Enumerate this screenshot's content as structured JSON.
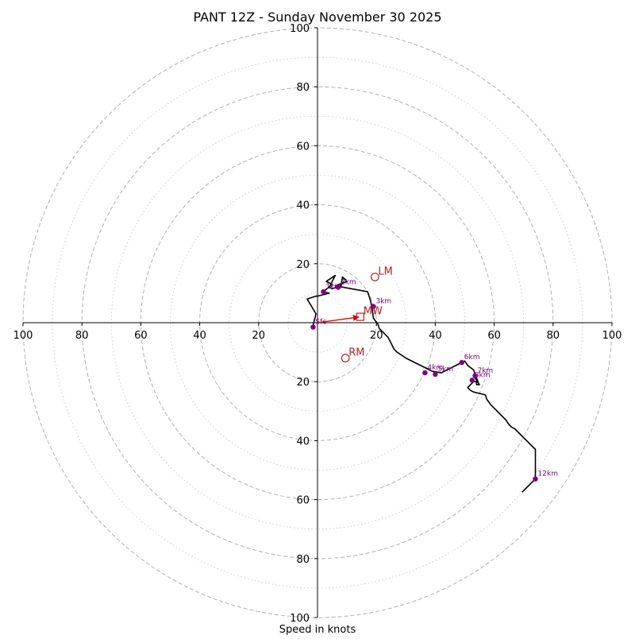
{
  "chart_data": {
    "type": "scatter",
    "subtype": "hodograph",
    "title": "PANT 12Z - Sunday November 30 2025",
    "xlabel": "Speed in knots",
    "ylabel": "",
    "xlim": [
      -100,
      100
    ],
    "ylim": [
      -100,
      100
    ],
    "ring_major": [
      20,
      40,
      60,
      80,
      100
    ],
    "ring_minor": [
      10,
      30,
      50,
      70,
      90
    ],
    "x_tick_labels": [
      "100",
      "80",
      "60",
      "40",
      "20",
      "",
      "20",
      "40",
      "60",
      "80",
      "100"
    ],
    "x_tick_values": [
      -100,
      -80,
      -60,
      -40,
      -20,
      0,
      20,
      40,
      60,
      80,
      100
    ],
    "y_tick_labels_top": [
      "20",
      "40",
      "60",
      "80",
      "100"
    ],
    "y_tick_labels_bottom": [
      "20",
      "40",
      "60",
      "80",
      "100"
    ],
    "y_tick_values": [
      20,
      40,
      60,
      80,
      100
    ],
    "trace": {
      "name": "hodograph",
      "color": "#000000",
      "u": [
        -1.5,
        -0.5,
        -3.5,
        -0.5,
        0,
        4,
        2,
        5,
        3,
        6,
        4,
        5,
        8,
        8.5,
        10,
        6,
        11.5,
        17,
        18,
        18.5,
        19,
        20.5,
        21,
        22,
        24,
        25,
        26,
        27,
        30,
        33,
        36,
        39,
        42,
        45,
        48,
        50,
        51,
        53,
        54.5,
        53,
        55,
        54,
        54,
        53,
        52,
        51,
        52,
        53,
        55,
        57,
        57.5,
        59,
        60,
        62,
        64,
        65,
        66,
        67,
        68,
        69,
        70,
        74,
        74,
        69.5
      ],
      "v": [
        -1,
        3,
        8,
        9,
        9,
        10,
        10.5,
        13,
        14,
        16,
        12,
        11.5,
        12.5,
        15.5,
        14,
        12.5,
        11.5,
        10.5,
        7.5,
        5,
        1.5,
        -0.5,
        -2,
        -3,
        -5,
        -7,
        -9,
        -10,
        -12,
        -13.5,
        -15,
        -16.5,
        -17,
        -15.5,
        -14,
        -13,
        -14.5,
        -16,
        -20,
        -18,
        -21,
        -21,
        -20,
        -20,
        -21,
        -22,
        -23,
        -23.5,
        -24,
        -24.5,
        -26,
        -28,
        -29,
        -31,
        -33,
        -34.5,
        -35.5,
        -36,
        -37,
        -38,
        -39,
        -43,
        -53,
        -57.5
      ]
    },
    "height_markers": [
      {
        "label": "Sfc",
        "u": -1.5,
        "v": -1.5
      },
      {
        "label": "1km",
        "u": 2,
        "v": 10.5
      },
      {
        "label": "2km",
        "u": 7,
        "v": 12
      },
      {
        "label": "3km",
        "u": 19,
        "v": 5.5
      },
      {
        "label": "4km",
        "u": 36.5,
        "v": -17
      },
      {
        "label": "5km",
        "u": 40,
        "v": -17.5
      },
      {
        "label": "6km",
        "u": 49,
        "v": -13.5
      },
      {
        "label": "7km",
        "u": 53.5,
        "v": -18
      },
      {
        "label": "8km",
        "u": 52.5,
        "v": -19.5
      },
      {
        "label": "12km",
        "u": 74,
        "v": -53
      }
    ],
    "storm_motion": [
      {
        "label": "LM",
        "u": 19.5,
        "v": 15.5,
        "marker": "circle"
      },
      {
        "label": "RM",
        "u": 9.5,
        "v": -12,
        "marker": "circle"
      },
      {
        "label": "MW",
        "u": 14.5,
        "v": 2,
        "marker": "square"
      }
    ],
    "shear_vector": {
      "from": [
        0,
        0
      ],
      "to": [
        14,
        1.9
      ]
    },
    "colors": {
      "trace": "#000000",
      "markers": "#800080",
      "storm": "#b22222",
      "grid": "#b0b0b0",
      "axis": "#000000"
    }
  }
}
